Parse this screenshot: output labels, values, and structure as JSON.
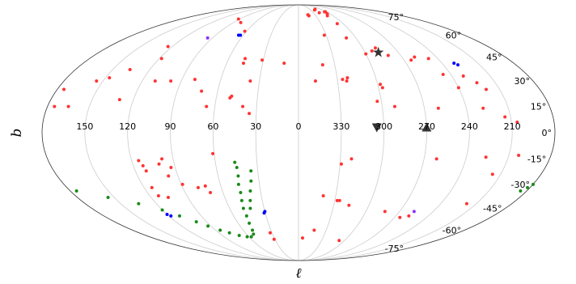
{
  "chart_data": {
    "type": "scatter",
    "projection": "mollweide",
    "xlabel": "ℓ",
    "ylabel": "b",
    "x_ticks": [
      "150",
      "120",
      "90",
      "60",
      "30",
      "0",
      "330",
      "300",
      "270",
      "240",
      "210"
    ],
    "x_tick_values": [
      150,
      120,
      90,
      60,
      30,
      0,
      330,
      300,
      270,
      240,
      210
    ],
    "y_ticks": [
      "75°",
      "60°",
      "45°",
      "30°",
      "15°",
      "0°",
      "-15°",
      "-30°",
      "-45°",
      "-60°",
      "-75°"
    ],
    "y_tick_values": [
      75,
      60,
      45,
      30,
      15,
      0,
      -15,
      -30,
      -45,
      -60,
      -75
    ],
    "grid": true,
    "legend": "none",
    "colors": {
      "red": "#ff3333",
      "green": "#1a8a1a",
      "blue": "#0000ff",
      "purple": "#8833ff",
      "marker": "#333333",
      "grid": "#cccccc"
    },
    "series": [
      {
        "marker": "dot",
        "color": "red",
        "points": [
          [
            92,
            73
          ],
          [
            80,
            70
          ],
          [
            62,
            63
          ],
          [
            -17,
            77
          ],
          [
            -18,
            76
          ],
          [
            -40,
            82
          ],
          [
            -45,
            83
          ],
          [
            -42,
            79
          ],
          [
            -50,
            76
          ],
          [
            -56,
            80
          ],
          [
            -58,
            80
          ],
          [
            -55,
            78
          ],
          [
            -52,
            69
          ],
          [
            124,
            52
          ],
          [
            -28,
            60
          ],
          [
            -50,
            58
          ],
          [
            -67,
            49
          ],
          [
            -72,
            51
          ],
          [
            -60,
            47
          ],
          [
            -79,
            46
          ],
          [
            -96,
            43
          ],
          [
            -101,
            45
          ],
          [
            -112,
            44
          ],
          [
            -114,
            34
          ],
          [
            -129,
            33
          ],
          [
            -136,
            29
          ],
          [
            -140,
            25
          ],
          [
            -120,
            26
          ],
          [
            118,
            44
          ],
          [
            46,
            44
          ],
          [
            31,
            43
          ],
          [
            46,
            41
          ],
          [
            -20,
            40
          ],
          [
            12,
            41
          ],
          [
            155,
            30
          ],
          [
            147,
            32
          ],
          [
            136,
            37
          ],
          [
            110,
            30
          ],
          [
            98,
            30
          ],
          [
            80,
            31
          ],
          [
            37,
            30
          ],
          [
            -13,
            30
          ],
          [
            -34,
            31
          ],
          [
            -38,
            32
          ],
          [
            -37,
            30
          ],
          [
            -62,
            28
          ],
          [
            -63,
            26
          ],
          [
            175,
            25
          ],
          [
            165,
            15
          ],
          [
            175,
            15
          ],
          [
            130,
            19
          ],
          [
            72,
            24
          ],
          [
            66,
            15
          ],
          [
            50,
            20
          ],
          [
            49,
            21
          ],
          [
            40,
            15
          ],
          [
            35,
            11
          ],
          [
            -57,
            18
          ],
          [
            -69,
            15
          ],
          [
            -100,
            14
          ],
          [
            -132,
            14
          ],
          [
            -146,
            9
          ],
          [
            -154,
            6
          ],
          [
            115,
            -16
          ],
          [
            113,
            -19
          ],
          [
            112,
            -22
          ],
          [
            101,
            -18
          ],
          [
            98,
            -15
          ],
          [
            97,
            -25
          ],
          [
            93,
            -20
          ],
          [
            89,
            -30
          ],
          [
            78,
            -32
          ],
          [
            72,
            -31
          ],
          [
            70,
            -35
          ],
          [
            61,
            -12
          ],
          [
            114,
            -32
          ],
          [
            113,
            -37
          ],
          [
            106,
            -38
          ],
          [
            -31,
            -18
          ],
          [
            -38,
            -15
          ],
          [
            -20,
            -37
          ],
          [
            -32,
            -40
          ],
          [
            -34,
            -40
          ],
          [
            -43,
            -43
          ],
          [
            -99,
            -15
          ],
          [
            -134,
            -14
          ],
          [
            -157,
            -13
          ],
          [
            -144,
            -24
          ],
          [
            -142,
            -42
          ],
          [
            -77,
            -47
          ],
          [
            -95,
            -51
          ],
          [
            -102,
            -50
          ],
          [
            -17,
            -60
          ],
          [
            -5,
            -66
          ],
          [
            32,
            -62
          ],
          [
            31,
            -67
          ],
          [
            -53,
            -68
          ]
        ]
      },
      {
        "marker": "dot",
        "color": "green",
        "points": [
          [
            175,
            -34
          ],
          [
            155,
            -38
          ],
          [
            135,
            -42
          ],
          [
            120,
            -46
          ],
          [
            110,
            -50
          ],
          [
            100,
            -54
          ],
          [
            93,
            -57
          ],
          [
            85,
            -60
          ],
          [
            78,
            -62
          ],
          [
            70,
            -64
          ],
          [
            62,
            -65
          ],
          [
            57,
            -65
          ],
          [
            52,
            -63
          ],
          [
            50,
            -60
          ],
          [
            49,
            -55
          ],
          [
            48,
            -50
          ],
          [
            48,
            -45
          ],
          [
            47,
            -40
          ],
          [
            46,
            -35
          ],
          [
            46,
            -30
          ],
          [
            45,
            -25
          ],
          [
            45,
            -20
          ],
          [
            46,
            -17
          ],
          [
            42,
            -45
          ],
          [
            40,
            -40
          ],
          [
            38,
            -34
          ],
          [
            36,
            -28
          ],
          [
            35,
            -22
          ],
          [
            -175,
            -34
          ],
          [
            -178,
            -32
          ],
          [
            -180,
            -30
          ]
        ]
      },
      {
        "marker": "dot",
        "color": "blue",
        "points": [
          [
            63,
            60
          ],
          [
            65,
            60
          ],
          [
            -132,
            40
          ],
          [
            -130,
            41
          ],
          [
            30,
            -47
          ],
          [
            31,
            -48
          ],
          [
            120,
            -49
          ],
          [
            118,
            -50
          ]
        ]
      },
      {
        "marker": "dot",
        "color": "purple",
        "points": [
          [
            95,
            58
          ],
          [
            -103,
            -47
          ]
        ]
      },
      {
        "marker": "star",
        "color": "marker",
        "points": [
          [
            -72,
            48
          ]
        ]
      },
      {
        "marker": "triangle-down",
        "color": "marker",
        "points": [
          [
            -55,
            3
          ]
        ]
      },
      {
        "marker": "triangle-up",
        "color": "marker",
        "points": [
          [
            -90,
            3
          ]
        ]
      }
    ]
  }
}
